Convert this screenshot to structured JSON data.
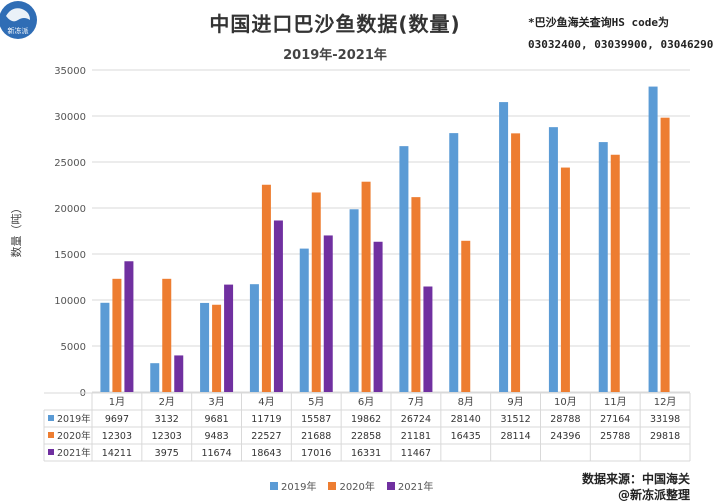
{
  "header": {
    "logo_text": "新冻派",
    "title": "中国进口巴沙鱼数据(数量)",
    "subtitle": "2019年-2021年",
    "note_line1": "*巴沙鱼海关查询HS code为",
    "note_line2": "03032400, 03039900, 03046290"
  },
  "footer": {
    "source": "数据来源：中国海关",
    "credit": "@新冻派整理"
  },
  "colors": {
    "2019": "#5B9BD5",
    "2020": "#ED7D31",
    "2021": "#7030A0"
  },
  "chart_data": {
    "type": "bar",
    "ylabel": "数量（吨）",
    "ylim": [
      0,
      35000
    ],
    "yticks": [
      0,
      5000,
      10000,
      15000,
      20000,
      25000,
      30000,
      35000
    ],
    "grid": true,
    "legend_position": "bottom",
    "categories": [
      "1月",
      "2月",
      "3月",
      "4月",
      "5月",
      "6月",
      "7月",
      "8月",
      "9月",
      "10月",
      "11月",
      "12月"
    ],
    "series": [
      {
        "name": "2019年",
        "values": [
          9697,
          3132,
          9681,
          11719,
          15587,
          19862,
          26724,
          28140,
          31512,
          28788,
          27164,
          33198
        ]
      },
      {
        "name": "2020年",
        "values": [
          12303,
          12303,
          9483,
          22527,
          21688,
          22858,
          21181,
          16435,
          28114,
          24396,
          25788,
          29818
        ]
      },
      {
        "name": "2021年",
        "values": [
          14211,
          3975,
          11674,
          18643,
          17016,
          16331,
          11467,
          null,
          null,
          null,
          null,
          null
        ]
      }
    ]
  }
}
